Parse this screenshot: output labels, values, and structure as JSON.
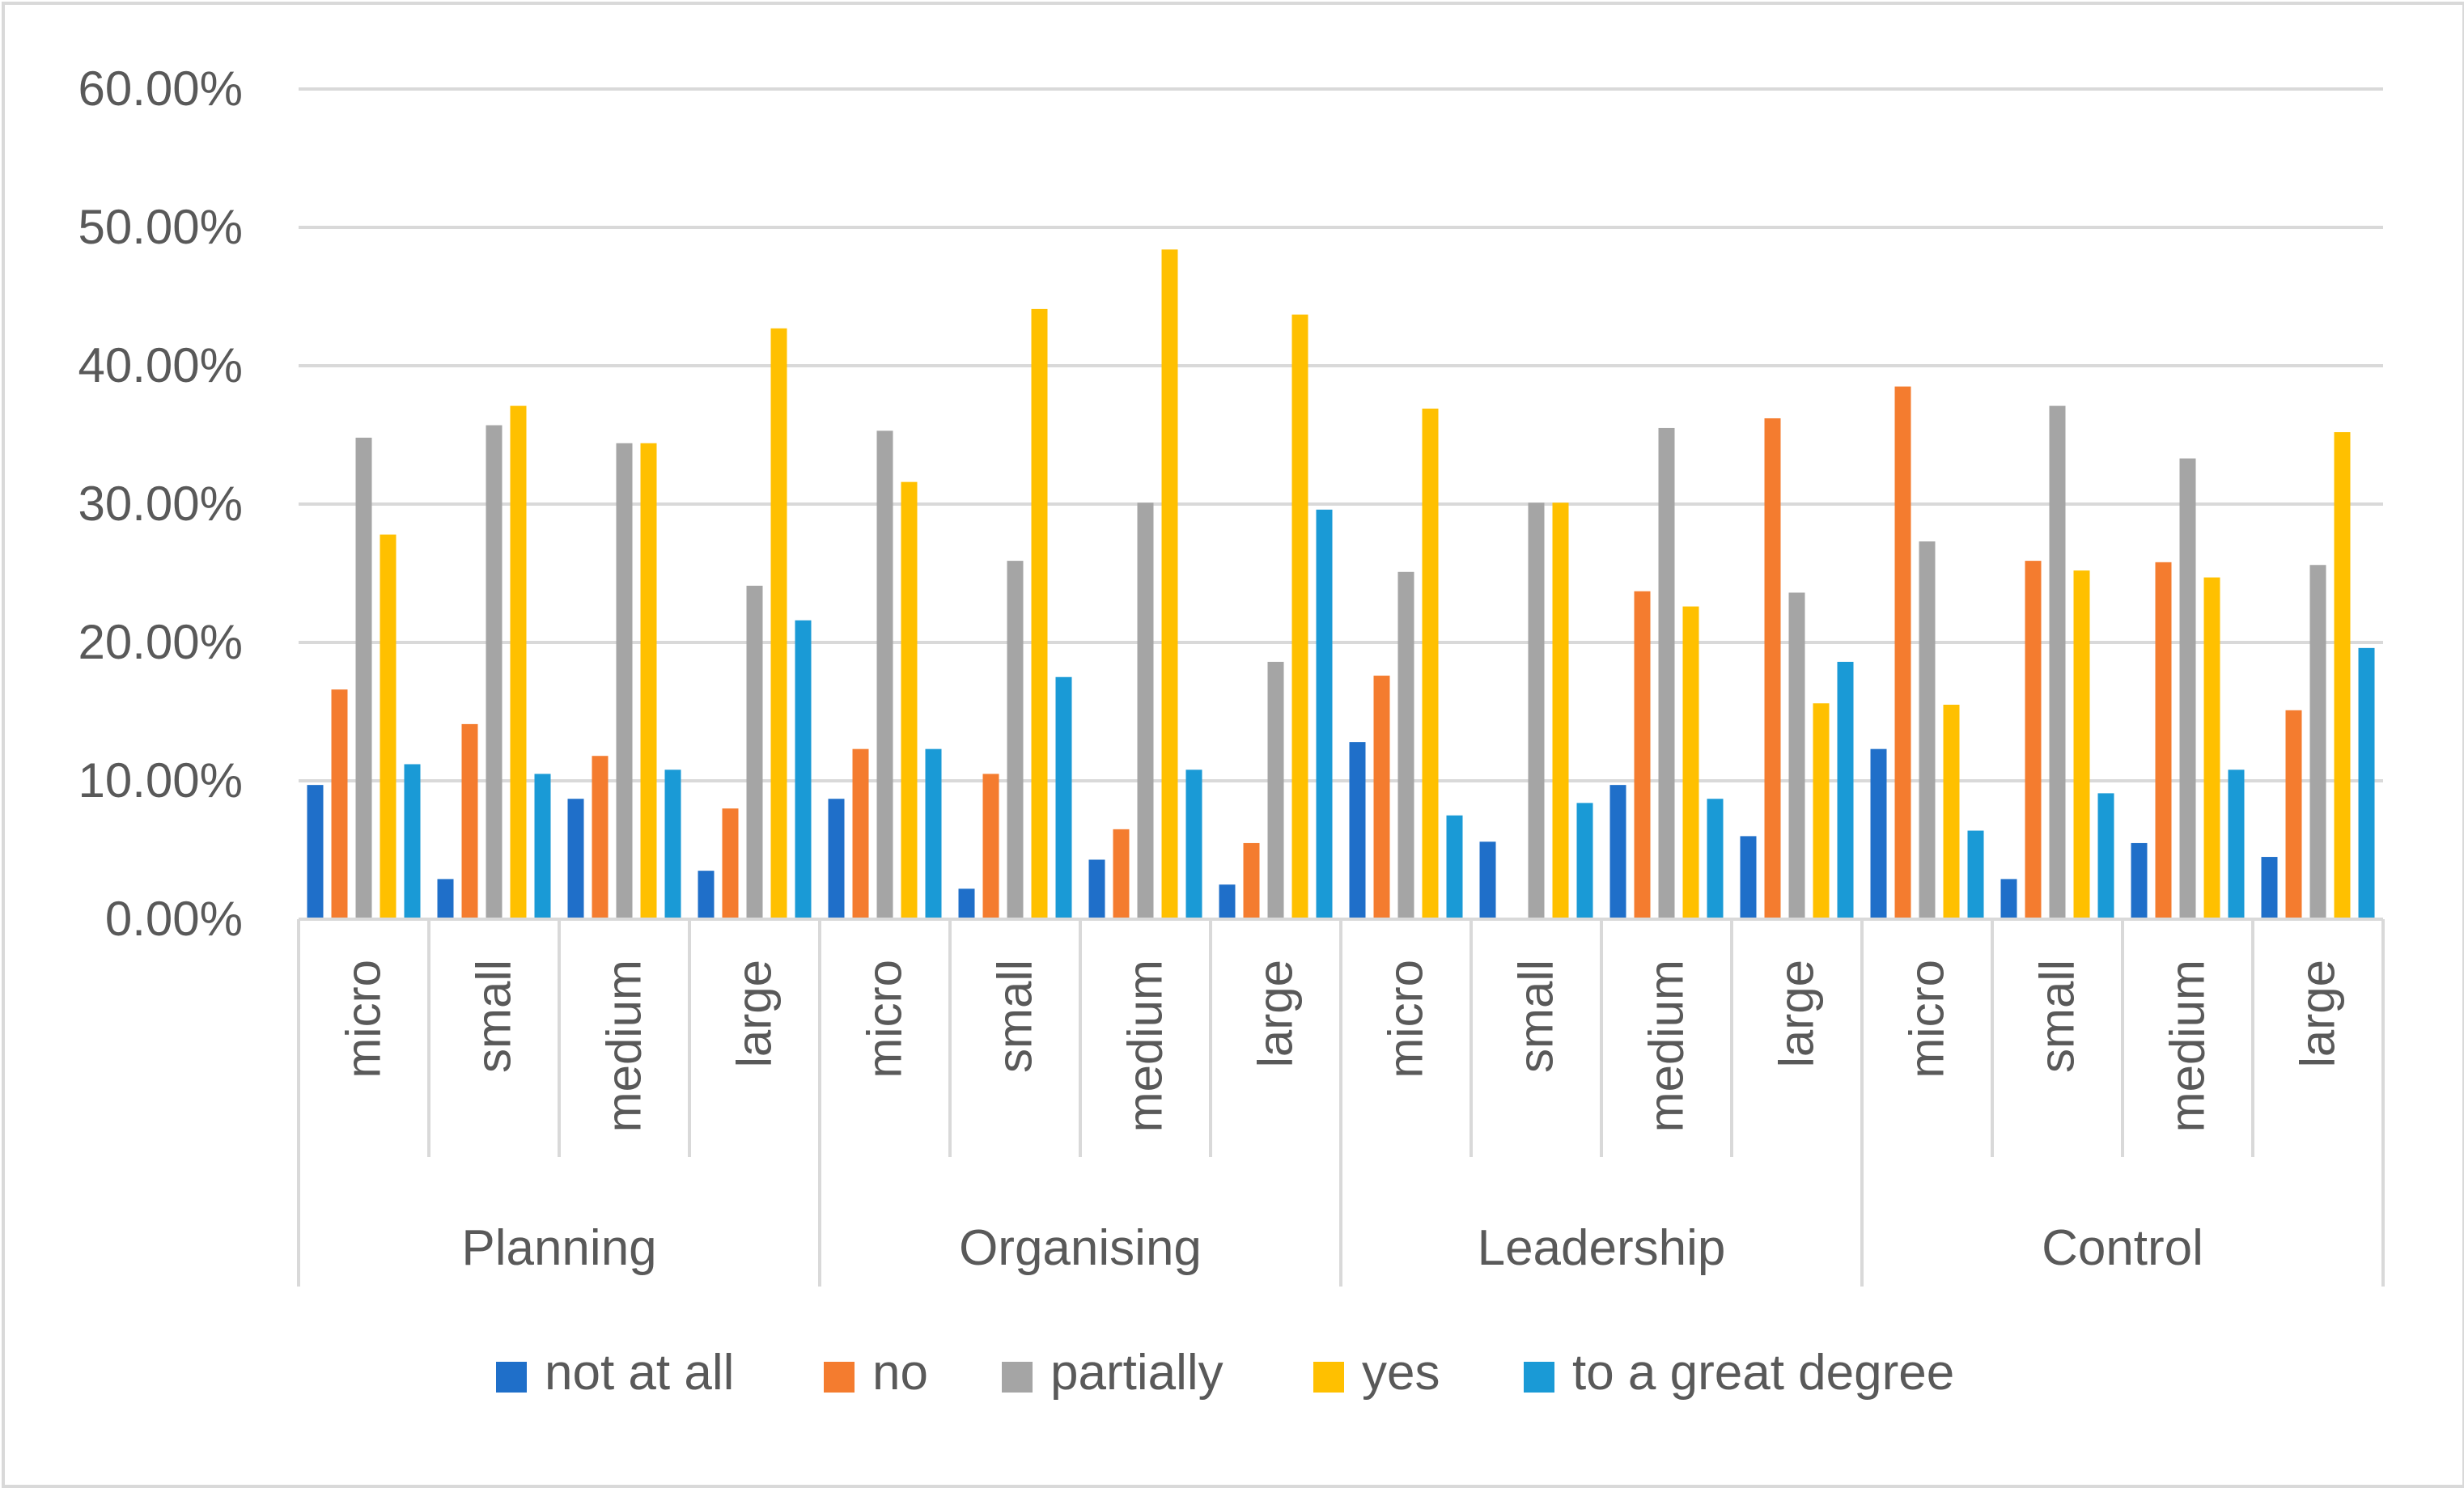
{
  "chart_data": {
    "type": "bar",
    "title": "",
    "xlabel": "",
    "ylabel": "",
    "ylim": [
      0,
      0.6
    ],
    "yticks": [
      0,
      0.1,
      0.2,
      0.3,
      0.4,
      0.5,
      0.6
    ],
    "ytick_labels": [
      "0.00%",
      "10.00%",
      "20.00%",
      "30.00%",
      "40.00%",
      "50.00%",
      "60.00%"
    ],
    "grid": true,
    "legend_position": "bottom",
    "groups": [
      "Planning",
      "Organising",
      "Leadership",
      "Control"
    ],
    "subcategories": [
      "micro",
      "small",
      "medium",
      "large"
    ],
    "series": [
      {
        "name": "not at all",
        "color": "#1f6fc9",
        "values": [
          0.097,
          0.029,
          0.087,
          0.035,
          0.087,
          0.022,
          0.043,
          0.025,
          0.128,
          0.056,
          0.097,
          0.06,
          0.123,
          0.029,
          0.055,
          0.045
        ]
      },
      {
        "name": "no",
        "color": "#f47c2f",
        "values": [
          0.166,
          0.141,
          0.118,
          0.08,
          0.123,
          0.105,
          0.065,
          0.055,
          0.176,
          0.0,
          0.237,
          0.362,
          0.385,
          0.259,
          0.258,
          0.151
        ]
      },
      {
        "name": "partially",
        "color": "#a5a5a5",
        "values": [
          0.348,
          0.357,
          0.344,
          0.241,
          0.353,
          0.259,
          0.301,
          0.186,
          0.251,
          0.301,
          0.355,
          0.236,
          0.273,
          0.371,
          0.333,
          0.256
        ]
      },
      {
        "name": "yes",
        "color": "#ffc000",
        "values": [
          0.278,
          0.371,
          0.344,
          0.427,
          0.316,
          0.441,
          0.484,
          0.437,
          0.369,
          0.301,
          0.226,
          0.156,
          0.155,
          0.252,
          0.247,
          0.352
        ]
      },
      {
        "name": "to a great degree",
        "color": "#1a9ad6",
        "values": [
          0.112,
          0.105,
          0.108,
          0.216,
          0.123,
          0.175,
          0.108,
          0.296,
          0.075,
          0.084,
          0.087,
          0.186,
          0.064,
          0.091,
          0.108,
          0.196
        ]
      }
    ]
  },
  "colors": {
    "gridline": "#d9d9d9",
    "axis": "#d9d9d9",
    "text": "#595959",
    "frame": "#d9d9d9"
  }
}
